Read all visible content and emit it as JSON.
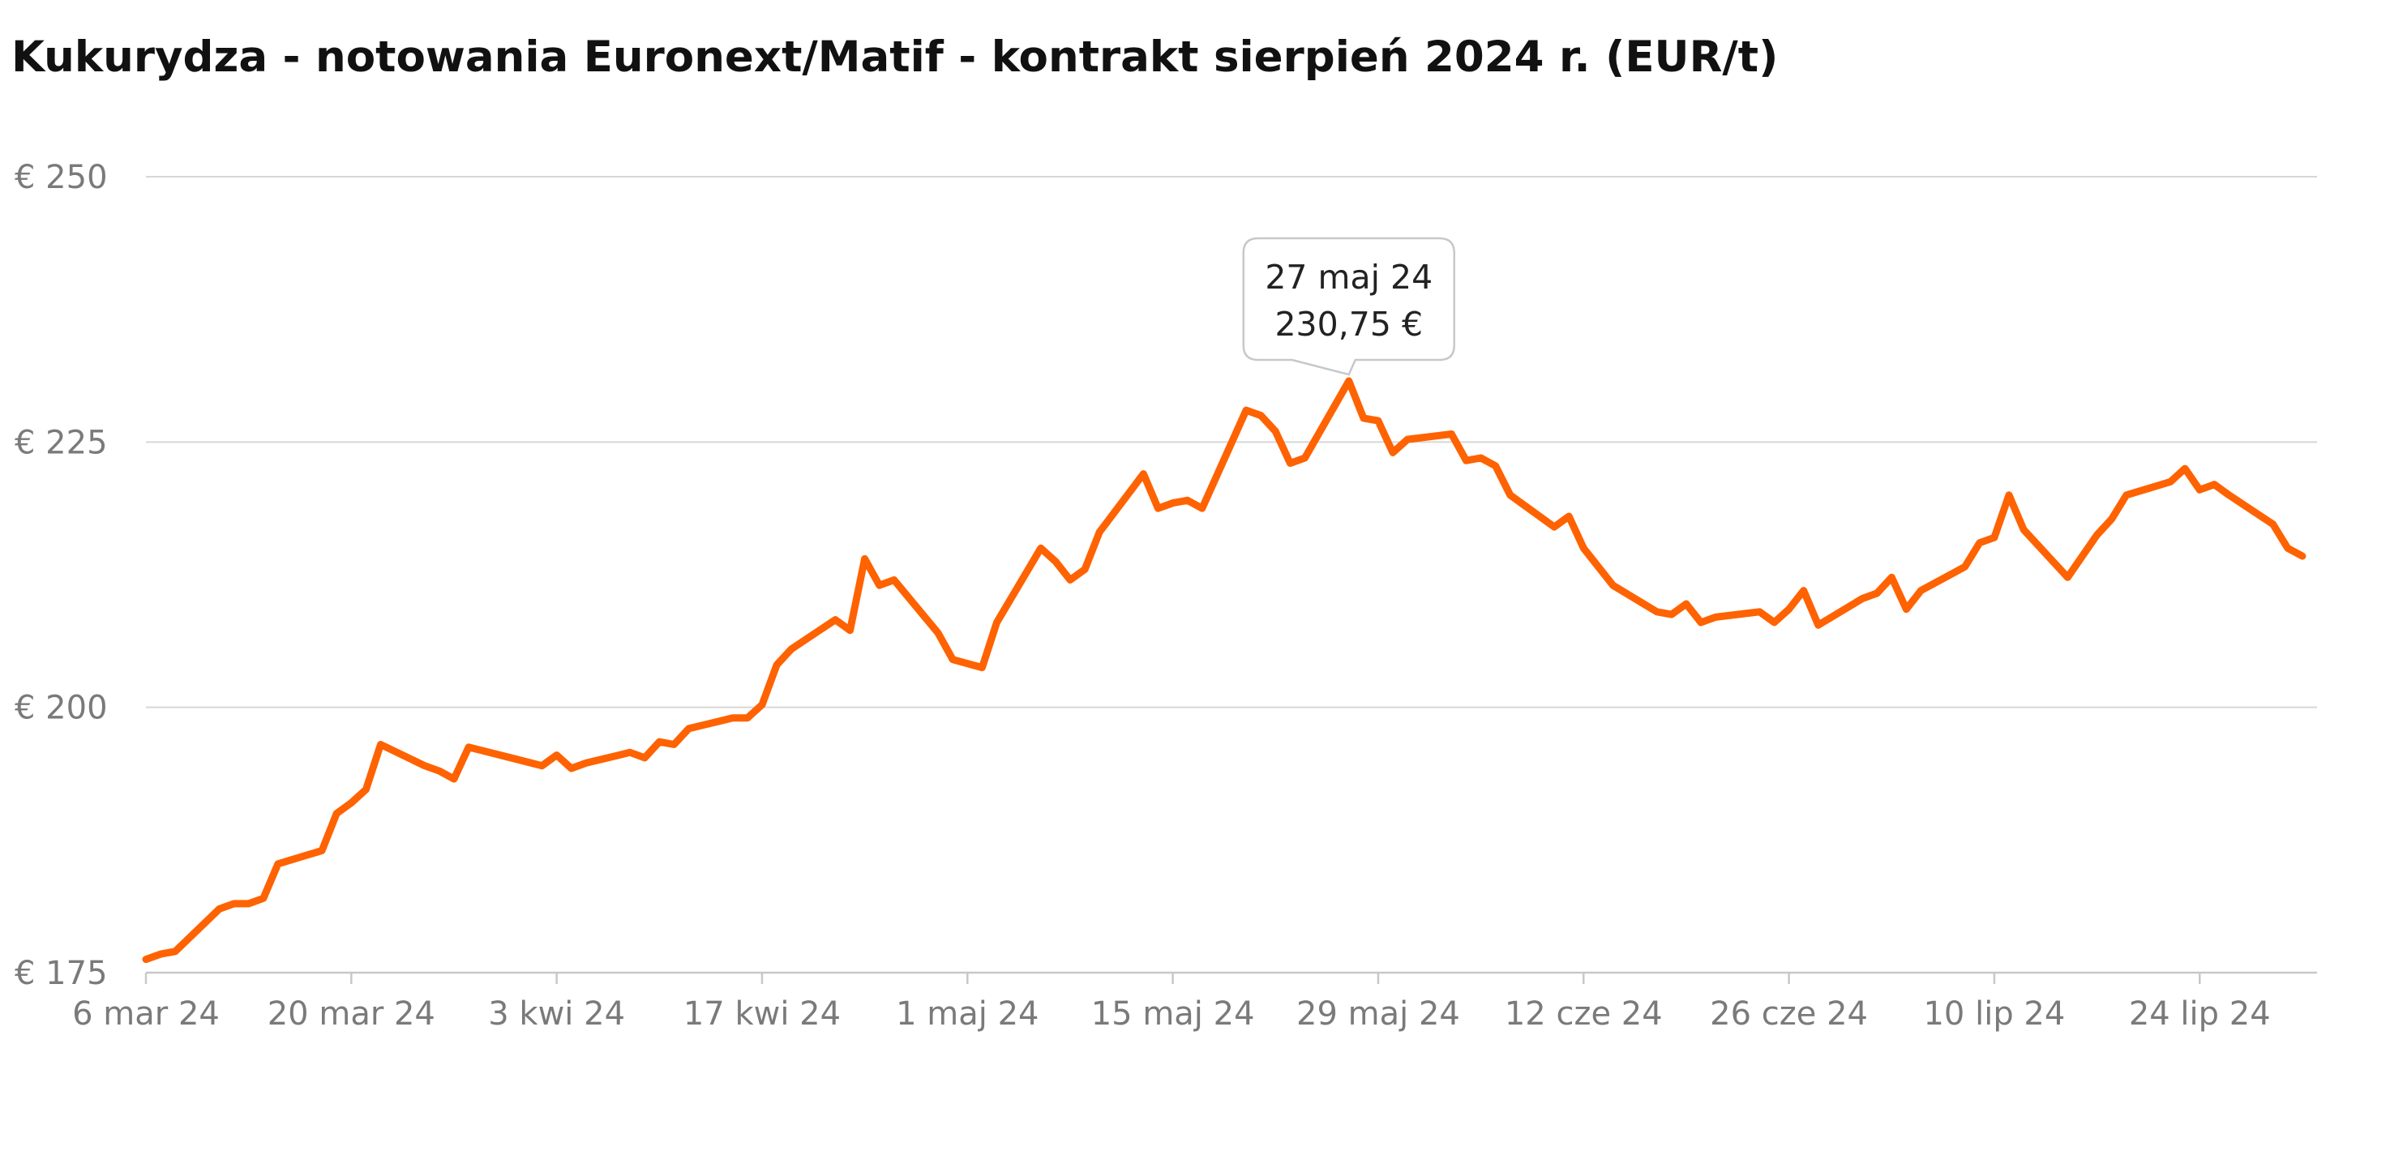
{
  "chart_data": {
    "type": "line",
    "title": "Kukurydza - notowania Euronext/Matif - kontrakt sierpień 2024 r. (EUR/t)",
    "xlabel": "",
    "ylabel": "",
    "ylim": [
      175,
      250
    ],
    "y_ticks": [
      250,
      225,
      200,
      175
    ],
    "y_tick_labels": [
      "€ 250",
      "€ 225",
      "€ 200",
      "€ 175"
    ],
    "x_range": [
      "2024-03-06",
      "2024-08-01"
    ],
    "x_ticks": [
      "2024-03-06",
      "2024-03-20",
      "2024-04-03",
      "2024-04-17",
      "2024-05-01",
      "2024-05-15",
      "2024-05-29",
      "2024-06-12",
      "2024-06-26",
      "2024-07-10",
      "2024-07-24"
    ],
    "x_tick_labels": [
      "6 mar 24",
      "20 mar 24",
      "3 kwi 24",
      "17 kwi 24",
      "1 maj 24",
      "15 maj 24",
      "29 maj 24",
      "12 cze 24",
      "26 cze 24",
      "10 lip 24",
      "24 lip 24"
    ],
    "grid": true,
    "line_color": "#FF6200",
    "series": [
      {
        "x": [
          "2024-03-06",
          "2024-03-07",
          "2024-03-08",
          "2024-03-11",
          "2024-03-12",
          "2024-03-13",
          "2024-03-14",
          "2024-03-15",
          "2024-03-18",
          "2024-03-19",
          "2024-03-20",
          "2024-03-21",
          "2024-03-22",
          "2024-03-25",
          "2024-03-26",
          "2024-03-27",
          "2024-03-28",
          "2024-04-02",
          "2024-04-03",
          "2024-04-04",
          "2024-04-05",
          "2024-04-08",
          "2024-04-09",
          "2024-04-10",
          "2024-04-11",
          "2024-04-12",
          "2024-04-15",
          "2024-04-16",
          "2024-04-17",
          "2024-04-18",
          "2024-04-19",
          "2024-04-22",
          "2024-04-23",
          "2024-04-24",
          "2024-04-25",
          "2024-04-26",
          "2024-04-29",
          "2024-04-30",
          "2024-05-02",
          "2024-05-03",
          "2024-05-06",
          "2024-05-07",
          "2024-05-08",
          "2024-05-09",
          "2024-05-10",
          "2024-05-13",
          "2024-05-14",
          "2024-05-15",
          "2024-05-16",
          "2024-05-17",
          "2024-05-20",
          "2024-05-21",
          "2024-05-22",
          "2024-05-23",
          "2024-05-24",
          "2024-05-27",
          "2024-05-28",
          "2024-05-29",
          "2024-05-30",
          "2024-05-31",
          "2024-06-03",
          "2024-06-04",
          "2024-06-05",
          "2024-06-06",
          "2024-06-07",
          "2024-06-10",
          "2024-06-11",
          "2024-06-12",
          "2024-06-13",
          "2024-06-14",
          "2024-06-17",
          "2024-06-18",
          "2024-06-19",
          "2024-06-20",
          "2024-06-21",
          "2024-06-24",
          "2024-06-25",
          "2024-06-26",
          "2024-06-27",
          "2024-06-28",
          "2024-07-01",
          "2024-07-02",
          "2024-07-03",
          "2024-07-04",
          "2024-07-05",
          "2024-07-08",
          "2024-07-09",
          "2024-07-10",
          "2024-07-11",
          "2024-07-12",
          "2024-07-15",
          "2024-07-16",
          "2024-07-17",
          "2024-07-18",
          "2024-07-19",
          "2024-07-22",
          "2024-07-23",
          "2024-07-24",
          "2024-07-25",
          "2024-07-26",
          "2024-07-29",
          "2024-07-30",
          "2024-07-31"
        ],
        "y": [
          176.25,
          176.75,
          177.0,
          181.0,
          181.5,
          181.5,
          182.0,
          185.25,
          186.5,
          190.0,
          191.0,
          192.25,
          196.5,
          194.5,
          194.0,
          193.25,
          196.25,
          194.5,
          195.5,
          194.25,
          194.75,
          195.75,
          195.25,
          196.75,
          196.5,
          198.0,
          199.0,
          199.0,
          200.25,
          204.0,
          205.5,
          208.25,
          207.25,
          214.0,
          211.5,
          212.0,
          207.0,
          204.5,
          203.75,
          208.0,
          215.0,
          213.75,
          212.0,
          213.0,
          216.5,
          222.0,
          218.75,
          219.25,
          219.5,
          218.75,
          228.0,
          227.5,
          226.0,
          223.0,
          223.5,
          230.75,
          227.25,
          227.0,
          224.0,
          225.25,
          225.75,
          223.25,
          223.5,
          222.75,
          220.0,
          217.0,
          218.0,
          215.0,
          213.25,
          211.5,
          209.0,
          208.75,
          209.75,
          208.0,
          208.5,
          209.0,
          208.0,
          209.25,
          211.0,
          207.75,
          210.25,
          210.75,
          212.25,
          209.25,
          211.0,
          213.25,
          215.5,
          216.0,
          220.0,
          216.75,
          212.25,
          214.25,
          216.25,
          217.75,
          220.0,
          221.25,
          222.5,
          220.5,
          221.0,
          220.0,
          217.25,
          215.0,
          214.25
        ]
      }
    ],
    "annotation": {
      "date": "2024-05-27",
      "value": 230.75,
      "line1": "27 maj 24",
      "line2": "230,75 €"
    }
  }
}
